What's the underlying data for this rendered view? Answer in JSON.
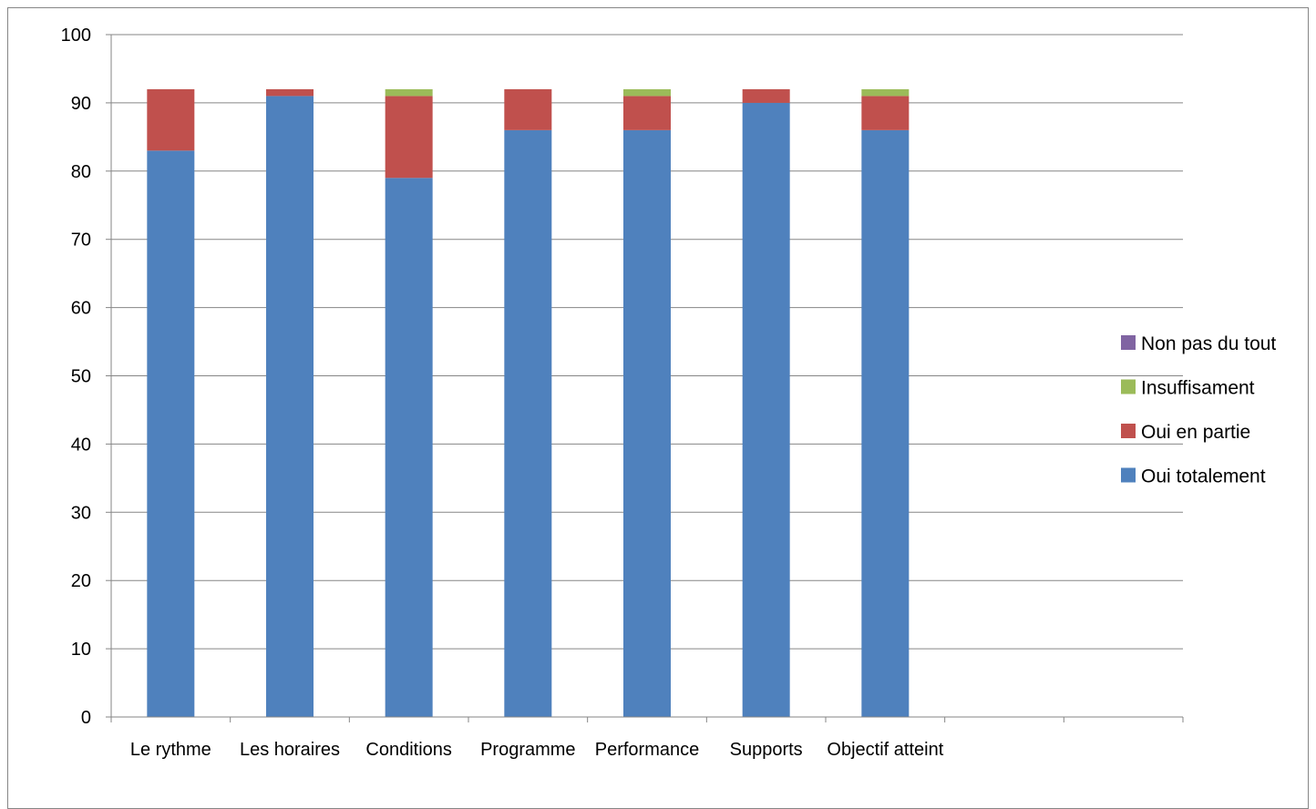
{
  "chart_data": {
    "type": "bar",
    "stacked": true,
    "categories": [
      "Le rythme",
      "Les horaires",
      "Conditions",
      "Programme",
      "Performance",
      "Supports",
      "Objectif atteint",
      "",
      ""
    ],
    "series": [
      {
        "name": "Oui totalement",
        "color": "#4F81BD",
        "values": [
          83,
          91,
          79,
          86,
          86,
          90,
          86,
          0,
          0
        ]
      },
      {
        "name": "Oui en partie",
        "color": "#C0504D",
        "values": [
          9,
          1,
          12,
          6,
          5,
          2,
          5,
          0,
          0
        ]
      },
      {
        "name": "Insuffisament",
        "color": "#9BBB59",
        "values": [
          0,
          0,
          1,
          0,
          1,
          0,
          1,
          0,
          0
        ]
      },
      {
        "name": "Non pas du tout",
        "color": "#8064A2",
        "values": [
          0,
          0,
          0,
          0,
          0,
          0,
          0,
          0,
          0
        ]
      }
    ],
    "yticks": [
      "0",
      "10",
      "20",
      "30",
      "40",
      "50",
      "60",
      "70",
      "80",
      "90",
      "100"
    ],
    "ylim": [
      0,
      100
    ],
    "grid": true,
    "legend": "right"
  }
}
